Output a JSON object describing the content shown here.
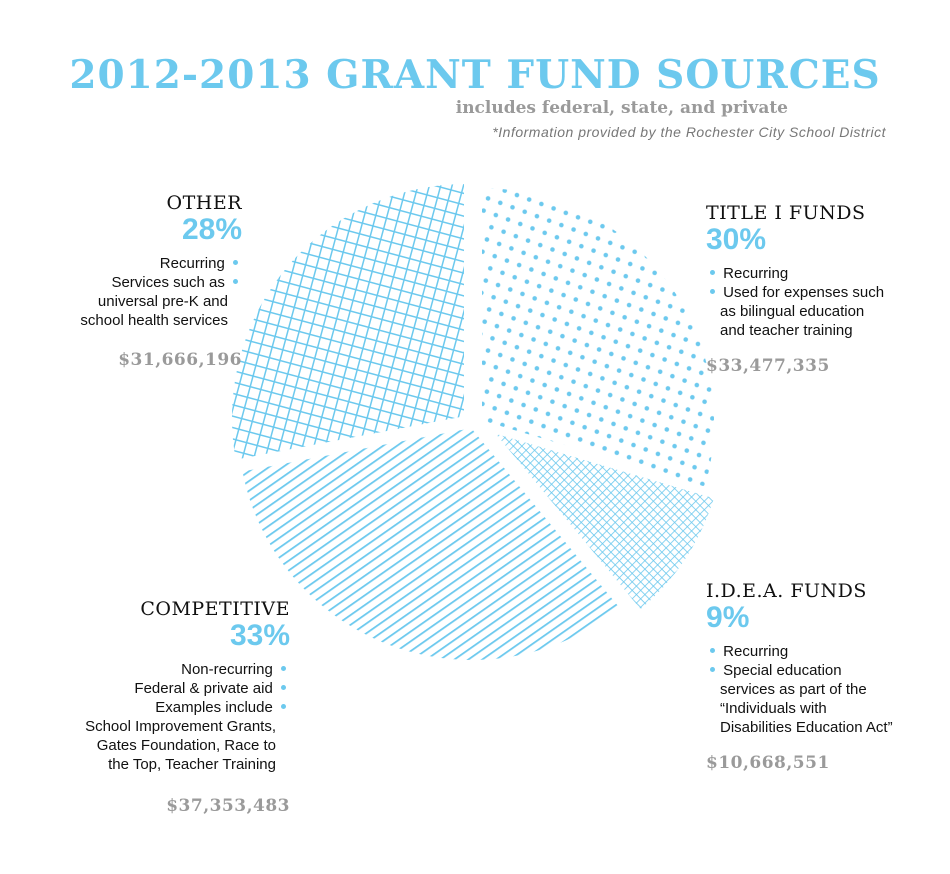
{
  "header": {
    "title": "2012-2013 GRANT FUND SOURCES",
    "subtitle": "includes federal, state, and private",
    "source": "*Information provided by the  Rochester City School District"
  },
  "chart_data": {
    "type": "pie",
    "title": "2012-2013 GRANT FUND SOURCES",
    "accent_color": "#6cc9ee",
    "slices": [
      {
        "label": "TITLE I FUNDS",
        "percent": 30,
        "amount": "$33,477,335",
        "value": 33477335,
        "pattern": "dots",
        "notes": [
          "Recurring",
          "Used for expenses such",
          "as bilingual education",
          "and teacher training"
        ]
      },
      {
        "label": "I.D.E.A. FUNDS",
        "percent": 9,
        "amount": "$10,668,551",
        "value": 10668551,
        "pattern": "crosshatch",
        "notes": [
          "Recurring",
          "Special education",
          "services as part of the",
          "“Individuals with",
          "Disabilities Education Act”"
        ]
      },
      {
        "label": "COMPETITIVE",
        "percent": 33,
        "amount": "$37,353,483",
        "value": 37353483,
        "pattern": "diagonal-lines",
        "notes": [
          "Non-recurring",
          "Federal & private aid",
          "Examples include",
          "School Improvement Grants,",
          "Gates Foundation, Race to",
          "the Top, Teacher Training"
        ]
      },
      {
        "label": "OTHER",
        "percent": 28,
        "amount": "$31,666,196",
        "value": 31666196,
        "pattern": "grid",
        "notes": [
          "Recurring",
          "Services such as",
          "universal pre-K and",
          "school health services"
        ]
      }
    ]
  }
}
